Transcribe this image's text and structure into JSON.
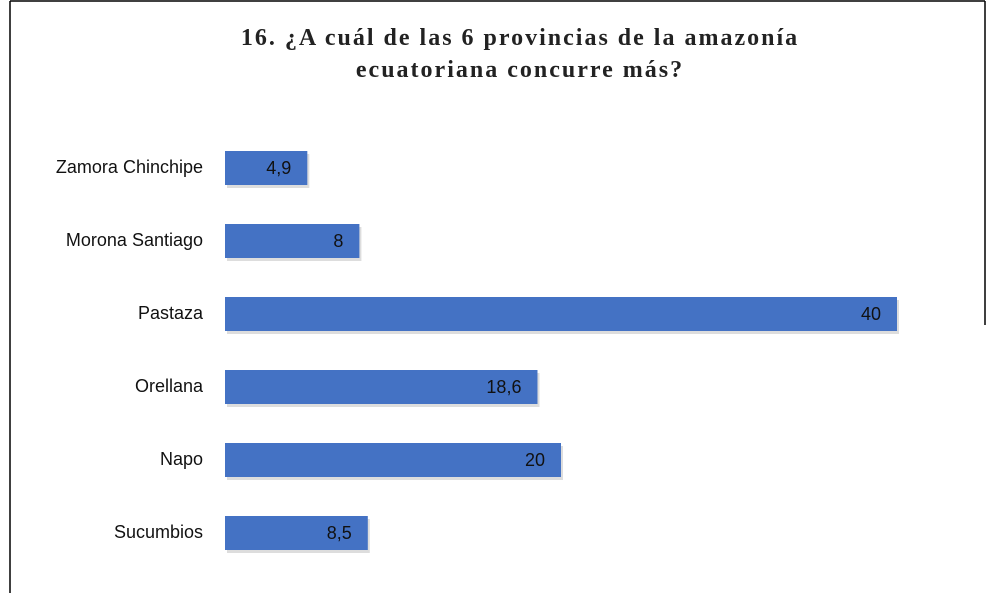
{
  "chart_data": {
    "type": "bar",
    "orientation": "horizontal",
    "title": "16. ¿A cuál de las 6 provincias de la amazonía ecuatoriana concurre más?",
    "categories": [
      "Zamora Chinchipe",
      "Morona Santiago",
      "Pastaza",
      "Orellana",
      "Napo",
      "Sucumbios"
    ],
    "values": [
      4.9,
      8,
      40,
      18.6,
      20,
      8.5
    ],
    "value_labels": [
      "4,9",
      "8",
      "40",
      "18,6",
      "20",
      "8,5"
    ],
    "color": "#4472c4",
    "xlim": [
      0,
      40
    ]
  }
}
